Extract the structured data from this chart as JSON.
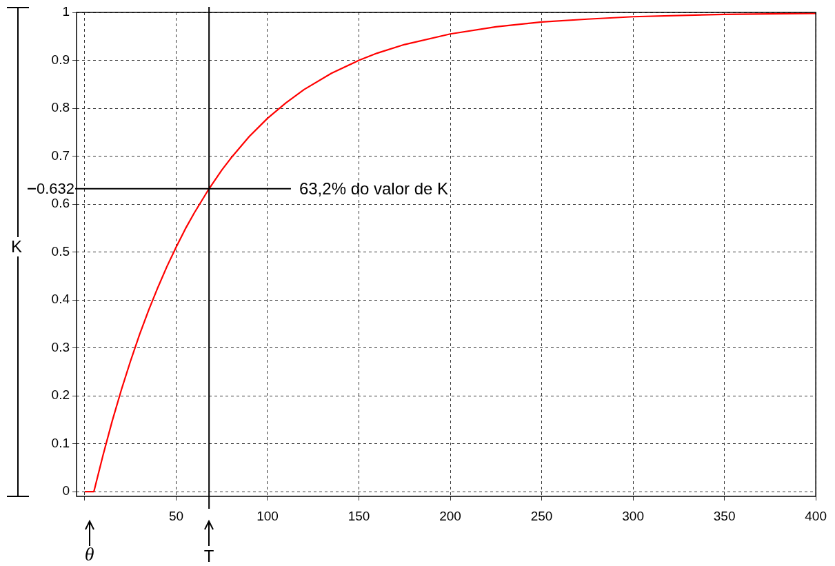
{
  "chart_data": {
    "type": "line",
    "x": [
      0,
      5,
      10,
      15,
      20,
      25,
      30,
      35,
      40,
      45,
      50,
      55,
      60,
      68,
      75,
      80,
      90,
      100,
      110,
      120,
      135,
      150,
      160,
      175,
      200,
      225,
      250,
      275,
      300,
      350,
      400
    ],
    "series": [
      {
        "color": "#ff0000",
        "values": [
          0,
          0,
          0.076,
          0.147,
          0.212,
          0.272,
          0.328,
          0.379,
          0.426,
          0.47,
          0.51,
          0.548,
          0.582,
          0.632,
          0.671,
          0.696,
          0.741,
          0.779,
          0.811,
          0.839,
          0.873,
          0.9,
          0.915,
          0.933,
          0.955,
          0.97,
          0.98,
          0.986,
          0.991,
          0.996,
          0.998
        ]
      }
    ],
    "xlim": [
      -4.5,
      400
    ],
    "ylim": [
      -0.01,
      1
    ],
    "xticks": [
      {
        "value": 0,
        "label": null
      },
      50,
      100,
      150,
      200,
      250,
      300,
      350,
      400
    ],
    "yticks": [
      0,
      0.1,
      0.2,
      0.3,
      0.4,
      0.5,
      0.6,
      0.7,
      0.8,
      0.9,
      1
    ],
    "grid": true,
    "legend": false,
    "marker": "none",
    "line_style": "solid",
    "ref_lines": [
      {
        "axis": "y",
        "value": 0.632,
        "label": "0.632"
      },
      {
        "axis": "x",
        "value": 68,
        "label": "T"
      }
    ],
    "annotations": [
      "63,2% do valor de K",
      {
        "text": "θ",
        "x": 2.5,
        "y": 0
      },
      "K"
    ]
  }
}
